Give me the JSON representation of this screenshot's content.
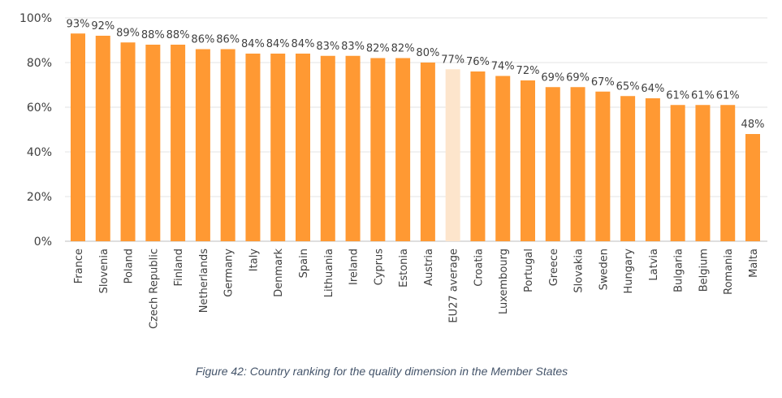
{
  "chart_data": {
    "type": "bar",
    "categories": [
      "France",
      "Slovenia",
      "Poland",
      "Czech Republic",
      "Finland",
      "Netherlands",
      "Germany",
      "Italy",
      "Denmark",
      "Spain",
      "Lithuania",
      "Ireland",
      "Cyprus",
      "Estonia",
      "Austria",
      "EU27 average",
      "Croatia",
      "Luxembourg",
      "Portugal",
      "Greece",
      "Slovakia",
      "Sweden",
      "Hungary",
      "Latvia",
      "Bulgaria",
      "Belgium",
      "Romania",
      "Malta"
    ],
    "values": [
      93,
      92,
      89,
      88,
      88,
      86,
      86,
      84,
      84,
      84,
      83,
      83,
      82,
      82,
      80,
      77,
      76,
      74,
      72,
      69,
      69,
      67,
      65,
      64,
      61,
      61,
      61,
      48
    ],
    "data_labels": [
      "93%",
      "92%",
      "89%",
      "88%",
      "88%",
      "86%",
      "86%",
      "84%",
      "84%",
      "84%",
      "83%",
      "83%",
      "82%",
      "82%",
      "80%",
      "77%",
      "76%",
      "74%",
      "72%",
      "69%",
      "69%",
      "67%",
      "65%",
      "64%",
      "61%",
      "61%",
      "61%",
      "48%"
    ],
    "ylim": [
      0,
      100
    ],
    "yticks": [
      "0%",
      "20%",
      "40%",
      "60%",
      "80%",
      "100%"
    ],
    "grid": true,
    "colors": {
      "bar": "#ff9933",
      "highlight": "#fde5cc"
    },
    "highlight_category": "EU27 average"
  },
  "caption": "Figure 42: Country ranking for the quality dimension in the Member States"
}
